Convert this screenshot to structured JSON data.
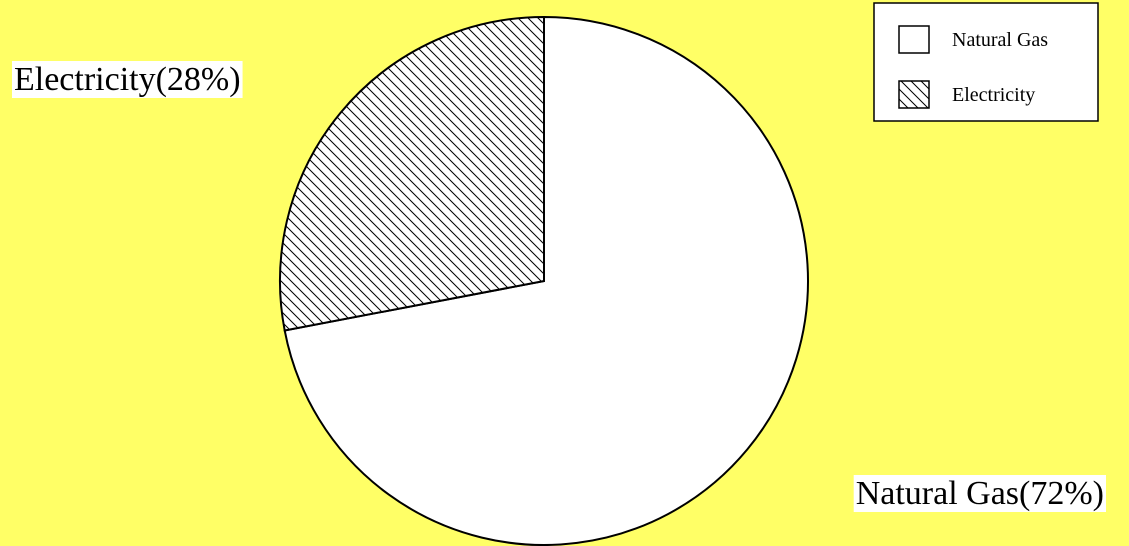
{
  "background_color": "#FFFF66",
  "chart_data": {
    "type": "pie",
    "title": "",
    "categories": [
      "Natural Gas",
      "Electricity"
    ],
    "values": [
      72,
      28
    ],
    "slice_labels": [
      "Natural Gas(72%)",
      "Electricity(28%)"
    ],
    "fills": [
      "solid-white",
      "diagonal-hatch"
    ],
    "start_angle_deg": 0,
    "direction": "clockwise",
    "legend": {
      "position": "top-right",
      "entries": [
        "Natural Gas",
        "Electricity"
      ]
    }
  }
}
